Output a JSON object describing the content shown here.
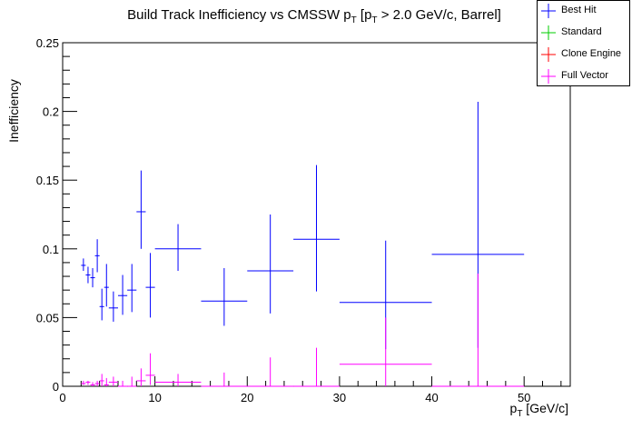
{
  "chart_data": {
    "type": "scatter",
    "title_main": "Build Track Inefficiency vs CMSSW p",
    "title_sub1": "T",
    "title_mid": " [p",
    "title_sub2": "T",
    "title_tail": " > 2.0 GeV/c, Barrel]",
    "xlabel_main": "p",
    "xlabel_sub": "T",
    "xlabel_tail": " [GeV/c]",
    "ylabel": "Inefficiency",
    "xlim": [
      0,
      55
    ],
    "ylim": [
      0,
      0.25
    ],
    "x_ticks": [
      0,
      10,
      20,
      30,
      40,
      50
    ],
    "y_ticks": [
      0,
      0.05,
      0.1,
      0.15,
      0.2,
      0.25
    ],
    "y_tick_labels": [
      "0",
      "0.05",
      "0.1",
      "0.15",
      "0.2",
      "0.25"
    ],
    "grid": false,
    "legend_position": "top-right",
    "series": [
      {
        "name": "Best Hit",
        "color": "#0000ff",
        "points": [
          {
            "x": 2.25,
            "xerr": 0.25,
            "y": 0.088,
            "ylo": 0.084,
            "yhi": 0.093
          },
          {
            "x": 2.75,
            "xerr": 0.25,
            "y": 0.081,
            "ylo": 0.075,
            "yhi": 0.087
          },
          {
            "x": 3.25,
            "xerr": 0.25,
            "y": 0.079,
            "ylo": 0.072,
            "yhi": 0.086
          },
          {
            "x": 3.75,
            "xerr": 0.25,
            "y": 0.095,
            "ylo": 0.083,
            "yhi": 0.107
          },
          {
            "x": 4.25,
            "xerr": 0.25,
            "y": 0.058,
            "ylo": 0.048,
            "yhi": 0.071
          },
          {
            "x": 4.75,
            "xerr": 0.25,
            "y": 0.072,
            "ylo": 0.058,
            "yhi": 0.089
          },
          {
            "x": 5.5,
            "xerr": 0.5,
            "y": 0.057,
            "ylo": 0.047,
            "yhi": 0.069
          },
          {
            "x": 6.5,
            "xerr": 0.5,
            "y": 0.066,
            "ylo": 0.052,
            "yhi": 0.081
          },
          {
            "x": 7.5,
            "xerr": 0.5,
            "y": 0.07,
            "ylo": 0.054,
            "yhi": 0.089
          },
          {
            "x": 8.5,
            "xerr": 0.5,
            "y": 0.127,
            "ylo": 0.1,
            "yhi": 0.157
          },
          {
            "x": 9.5,
            "xerr": 0.5,
            "y": 0.072,
            "ylo": 0.05,
            "yhi": 0.097
          },
          {
            "x": 12.5,
            "xerr": 2.5,
            "y": 0.1,
            "ylo": 0.084,
            "yhi": 0.118
          },
          {
            "x": 17.5,
            "xerr": 2.5,
            "y": 0.062,
            "ylo": 0.044,
            "yhi": 0.086
          },
          {
            "x": 22.5,
            "xerr": 2.5,
            "y": 0.084,
            "ylo": 0.053,
            "yhi": 0.125
          },
          {
            "x": 27.5,
            "xerr": 2.5,
            "y": 0.107,
            "ylo": 0.069,
            "yhi": 0.161
          },
          {
            "x": 35,
            "xerr": 5,
            "y": 0.061,
            "ylo": 0.027,
            "yhi": 0.106
          },
          {
            "x": 45,
            "xerr": 5,
            "y": 0.096,
            "ylo": 0.028,
            "yhi": 0.207
          }
        ]
      },
      {
        "name": "Standard",
        "color": "#00cc00",
        "points": []
      },
      {
        "name": "Clone Engine",
        "color": "#ff0000",
        "points": []
      },
      {
        "name": "Full Vector",
        "color": "#ff00ff",
        "points": [
          {
            "x": 2.25,
            "xerr": 0.25,
            "y": 0.002,
            "ylo": 0.001,
            "yhi": 0.004
          },
          {
            "x": 2.75,
            "xerr": 0.25,
            "y": 0.003,
            "ylo": 0.001,
            "yhi": 0.004
          },
          {
            "x": 3.25,
            "xerr": 0.25,
            "y": 0.001,
            "ylo": 0.0,
            "yhi": 0.003
          },
          {
            "x": 3.75,
            "xerr": 0.25,
            "y": 0.002,
            "ylo": 0.0,
            "yhi": 0.004
          },
          {
            "x": 4.25,
            "xerr": 0.25,
            "y": 0.004,
            "ylo": 0.0,
            "yhi": 0.009
          },
          {
            "x": 4.75,
            "xerr": 0.25,
            "y": 0.001,
            "ylo": 0.0,
            "yhi": 0.006
          },
          {
            "x": 5.5,
            "xerr": 0.5,
            "y": 0.003,
            "ylo": 0.0,
            "yhi": 0.007
          },
          {
            "x": 6.5,
            "xerr": 0.5,
            "y": 0.0,
            "ylo": 0.0,
            "yhi": 0.004
          },
          {
            "x": 7.5,
            "xerr": 0.5,
            "y": 0.0,
            "ylo": 0.0,
            "yhi": 0.007
          },
          {
            "x": 8.5,
            "xerr": 0.5,
            "y": 0.004,
            "ylo": 0.0,
            "yhi": 0.013
          },
          {
            "x": 9.5,
            "xerr": 0.5,
            "y": 0.008,
            "ylo": 0.001,
            "yhi": 0.024
          },
          {
            "x": 12.5,
            "xerr": 2.5,
            "y": 0.003,
            "ylo": 0.0,
            "yhi": 0.009
          },
          {
            "x": 17.5,
            "xerr": 2.5,
            "y": 0.0,
            "ylo": 0.0,
            "yhi": 0.01
          },
          {
            "x": 22.5,
            "xerr": 2.5,
            "y": 0.0,
            "ylo": 0.0,
            "yhi": 0.021
          },
          {
            "x": 27.5,
            "xerr": 2.5,
            "y": 0.0,
            "ylo": 0.0,
            "yhi": 0.028
          },
          {
            "x": 35,
            "xerr": 5,
            "y": 0.016,
            "ylo": 0.0,
            "yhi": 0.05
          },
          {
            "x": 45,
            "xerr": 5,
            "y": 0.0,
            "ylo": 0.0,
            "yhi": 0.082
          }
        ]
      }
    ]
  }
}
